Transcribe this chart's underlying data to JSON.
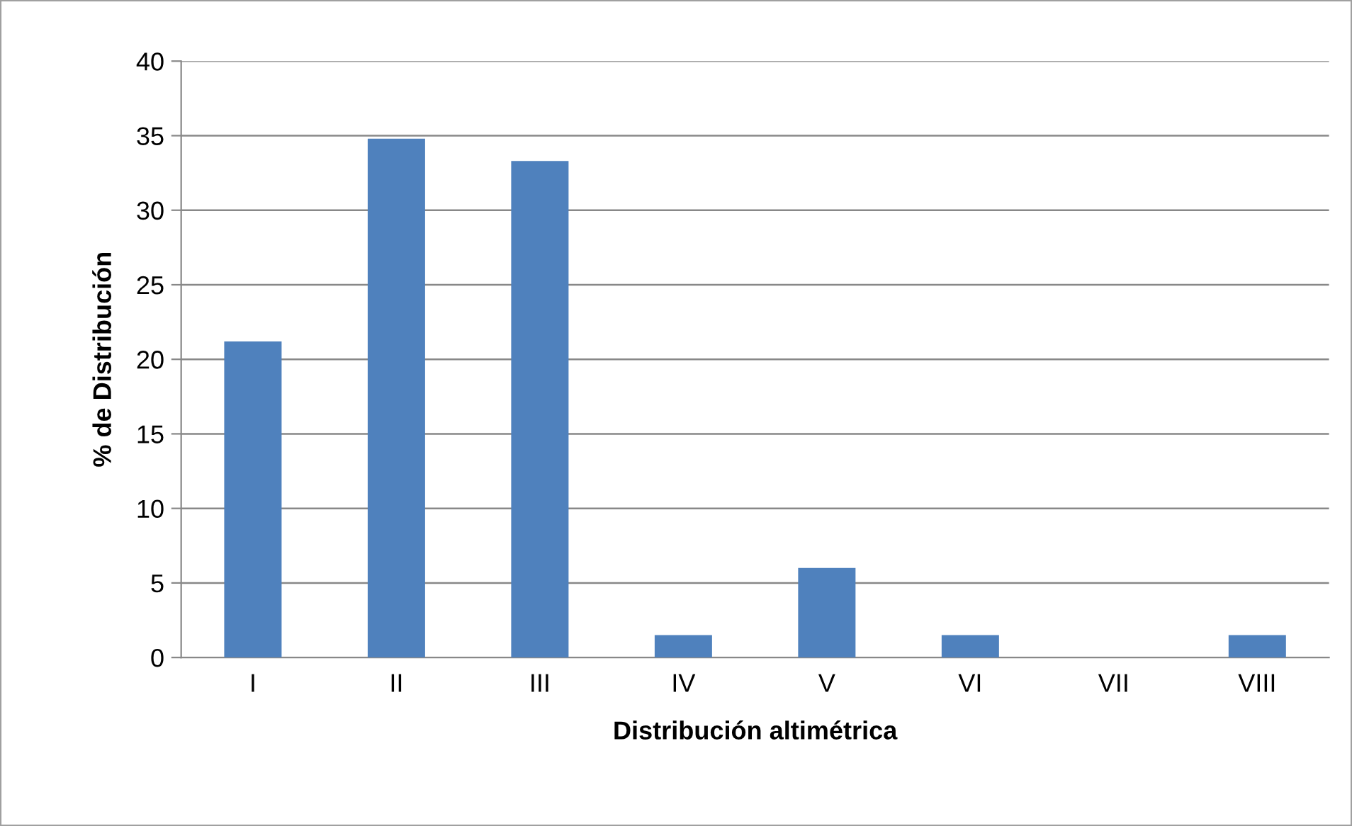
{
  "chart_data": {
    "type": "bar",
    "xlabel": "Distribución altimétrica",
    "ylabel": "% de Distribución",
    "categories": [
      "I",
      "II",
      "III",
      "IV",
      "V",
      "VI",
      "VII",
      "VIII"
    ],
    "values": [
      21.2,
      34.8,
      33.3,
      1.5,
      6.0,
      1.5,
      0,
      1.5
    ],
    "color": "#4f81bd",
    "ylim": [
      0,
      40
    ],
    "yticks": [
      0,
      5,
      10,
      15,
      20,
      25,
      30,
      35,
      40
    ],
    "grid": "y"
  }
}
